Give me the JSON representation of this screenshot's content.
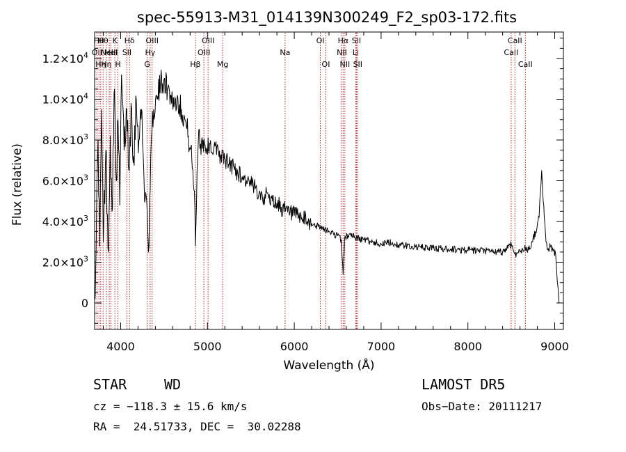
{
  "chart_data": {
    "type": "line",
    "title": "spec-55913-M31_014139N300249_F2_sp03-172.fits",
    "xlabel": "Wavelength (Å)",
    "ylabel": "Flux (relative)",
    "xlim": [
      3700,
      9100
    ],
    "ylim": [
      -1300,
      13300
    ],
    "xticks": [
      {
        "value": 4000,
        "label": "4000"
      },
      {
        "value": 5000,
        "label": "5000"
      },
      {
        "value": 6000,
        "label": "6000"
      },
      {
        "value": 7000,
        "label": "7000"
      },
      {
        "value": 8000,
        "label": "8000"
      },
      {
        "value": 9000,
        "label": "9000"
      }
    ],
    "yticks": [
      {
        "value": 0,
        "label": "0",
        "mant": "",
        "exp": ""
      },
      {
        "value": 2000,
        "label": "2.0×10³",
        "mant": "2.0×10",
        "exp": "3"
      },
      {
        "value": 4000,
        "label": "4.0×10³",
        "mant": "4.0×10",
        "exp": "3"
      },
      {
        "value": 6000,
        "label": "6.0×10³",
        "mant": "6.0×10",
        "exp": "3"
      },
      {
        "value": 8000,
        "label": "8.0×10³",
        "mant": "8.0×10",
        "exp": "3"
      },
      {
        "value": 10000,
        "label": "1.0×10⁴",
        "mant": "1.0×10",
        "exp": "4"
      },
      {
        "value": 12000,
        "label": "1.2×10⁴",
        "mant": "1.2×10",
        "exp": "4"
      }
    ],
    "grid": false,
    "series": [
      {
        "x": [
          3700,
          3720,
          3740,
          3760,
          3780,
          3800,
          3830,
          3860,
          3880,
          3900,
          3930,
          3950,
          3970,
          3990,
          4010,
          4040,
          4070,
          4100,
          4120,
          4150,
          4180,
          4210,
          4240,
          4270,
          4300,
          4320,
          4340,
          4360,
          4380,
          4420,
          4460,
          4500,
          4540,
          4580,
          4620,
          4660,
          4700,
          4740,
          4780,
          4820,
          4850,
          4861,
          4880,
          4900,
          4920,
          4950,
          4990,
          5030,
          5070,
          5110,
          5150,
          5200,
          5250,
          5300,
          5350,
          5400,
          5450,
          5500,
          5550,
          5600,
          5650,
          5700,
          5750,
          5800,
          5850,
          5900,
          5950,
          6000,
          6050,
          6100,
          6150,
          6200,
          6250,
          6300,
          6350,
          6400,
          6450,
          6500,
          6540,
          6563,
          6580,
          6620,
          6660,
          6700,
          6800,
          6900,
          7000,
          7100,
          7200,
          7300,
          7400,
          7500,
          7600,
          7700,
          7800,
          7900,
          8000,
          8100,
          8200,
          8300,
          8400,
          8500,
          8542,
          8600,
          8662,
          8700,
          8740,
          8780,
          8820,
          8850,
          8880,
          8900,
          8920,
          8950,
          8980,
          9010,
          9030,
          9050
        ],
        "y": [
          200,
          3500,
          8000,
          2800,
          9500,
          3000,
          7500,
          2500,
          8200,
          4500,
          10500,
          6000,
          9000,
          4800,
          11200,
          7500,
          9500,
          6500,
          9800,
          7200,
          10000,
          8000,
          9500,
          6000,
          5000,
          2500,
          5500,
          8500,
          9500,
          10000,
          10800,
          11000,
          10500,
          10200,
          9800,
          10000,
          9500,
          9000,
          8200,
          7000,
          5500,
          2800,
          6500,
          8500,
          7800,
          8000,
          7600,
          7800,
          7400,
          7700,
          7200,
          7100,
          6800,
          6700,
          6400,
          6200,
          6000,
          5800,
          5600,
          5500,
          5200,
          5300,
          5000,
          4900,
          4700,
          4500,
          4400,
          4300,
          4200,
          4100,
          4000,
          3900,
          3800,
          3700,
          3600,
          3500,
          3400,
          3300,
          3100,
          1400,
          3200,
          3300,
          3400,
          3200,
          3100,
          3000,
          2900,
          2950,
          2850,
          2800,
          2750,
          2700,
          2700,
          2650,
          2650,
          2600,
          2600,
          2550,
          2550,
          2500,
          2500,
          2900,
          2400,
          2500,
          2700,
          2600,
          3000,
          3500,
          4200,
          6500,
          4200,
          3000,
          2600,
          2800,
          2600,
          2400,
          1000,
          0
        ]
      }
    ],
    "lines": [
      {
        "x": 3727,
        "labels": [
          {
            "text": "OII",
            "row": 2
          }
        ]
      },
      {
        "x": 3750,
        "labels": [
          {
            "text": "Hθ",
            "row": 1
          }
        ]
      },
      {
        "x": 3771,
        "labels": [
          {
            "text": "Hη",
            "row": 3
          }
        ]
      },
      {
        "x": 3798,
        "labels": [
          {
            "text": "Hθ",
            "row": 1
          }
        ]
      },
      {
        "x": 3835,
        "labels": [
          {
            "text": "Hη",
            "row": 3
          }
        ]
      },
      {
        "x": 3869,
        "labels": [
          {
            "text": "NeIII",
            "row": 2
          }
        ]
      },
      {
        "x": 3889,
        "labels": [
          {
            "text": "HeI",
            "row": 2
          }
        ]
      },
      {
        "x": 3934,
        "labels": [
          {
            "text": "K",
            "row": 1
          }
        ]
      },
      {
        "x": 3969,
        "labels": [
          {
            "text": "H",
            "row": 3
          }
        ]
      },
      {
        "x": 4072,
        "labels": [
          {
            "text": "SII",
            "row": 2
          }
        ]
      },
      {
        "x": 4102,
        "labels": [
          {
            "text": "Hδ",
            "row": 1
          }
        ]
      },
      {
        "x": 4305,
        "labels": [
          {
            "text": "G",
            "row": 3
          }
        ]
      },
      {
        "x": 4340,
        "labels": [
          {
            "text": "Hγ",
            "row": 2
          }
        ]
      },
      {
        "x": 4363,
        "labels": [
          {
            "text": "OIII",
            "row": 1
          }
        ]
      },
      {
        "x": 4861,
        "labels": [
          {
            "text": "Hβ",
            "row": 3
          }
        ]
      },
      {
        "x": 4959,
        "labels": [
          {
            "text": "OIII",
            "row": 2
          }
        ]
      },
      {
        "x": 5007,
        "labels": [
          {
            "text": "OIII",
            "row": 1
          }
        ]
      },
      {
        "x": 5175,
        "labels": [
          {
            "text": "Mg",
            "row": 3
          }
        ]
      },
      {
        "x": 5894,
        "labels": [
          {
            "text": "Na",
            "row": 2
          }
        ]
      },
      {
        "x": 6300,
        "labels": [
          {
            "text": "OI",
            "row": 1
          }
        ]
      },
      {
        "x": 6364,
        "labels": [
          {
            "text": "OI",
            "row": 3
          }
        ]
      },
      {
        "x": 6548,
        "labels": [
          {
            "text": "NII",
            "row": 2
          }
        ]
      },
      {
        "x": 6563,
        "labels": [
          {
            "text": "Hα",
            "row": 1
          }
        ]
      },
      {
        "x": 6583,
        "labels": [
          {
            "text": "NII",
            "row": 3
          }
        ]
      },
      {
        "x": 6707,
        "labels": [
          {
            "text": "Li",
            "row": 2
          }
        ]
      },
      {
        "x": 6716,
        "labels": [
          {
            "text": "SII",
            "row": 1
          }
        ]
      },
      {
        "x": 6731,
        "labels": [
          {
            "text": "SII",
            "row": 3
          }
        ]
      },
      {
        "x": 8498,
        "labels": [
          {
            "text": "CaII",
            "row": 2
          }
        ]
      },
      {
        "x": 8542,
        "labels": [
          {
            "text": "CaII",
            "row": 1
          }
        ]
      },
      {
        "x": 8662,
        "labels": [
          {
            "text": "CaII",
            "row": 3
          }
        ]
      }
    ],
    "line_color": "#b22222"
  },
  "info": {
    "class": "STAR",
    "subclass": "WD",
    "survey": "LAMOST DR5",
    "cz": "cz = −118.3 ± 15.6 km/s",
    "obs_date": "Obs−Date: 20111217",
    "radec": "RA =  24.51733, DEC =  30.02288"
  }
}
